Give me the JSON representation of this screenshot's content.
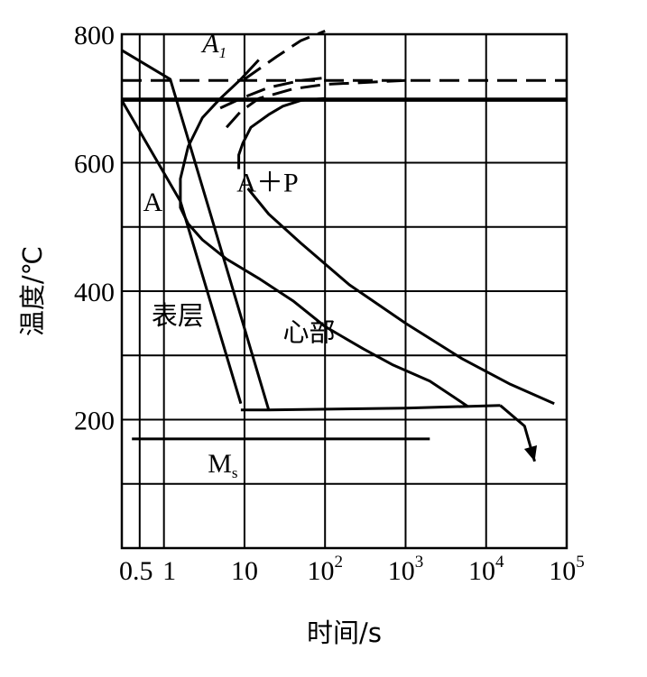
{
  "chart_data": {
    "type": "line",
    "title": "",
    "xlabel": "时间/s",
    "ylabel": "温度/℃",
    "x_scale": "log",
    "xlim": [
      0.3,
      100000
    ],
    "ylim": [
      0,
      800
    ],
    "grid": true,
    "y_ticks": [
      {
        "value": 200,
        "label": "200"
      },
      {
        "value": 400,
        "label": "400"
      },
      {
        "value": 600,
        "label": "600"
      },
      {
        "value": 800,
        "label": "800"
      }
    ],
    "y_gridlines": [
      100,
      200,
      300,
      400,
      500,
      600,
      700,
      800
    ],
    "x_ticks": [
      {
        "value": 0.5,
        "label": "0.5"
      },
      {
        "value": 1,
        "label": "1"
      },
      {
        "value": 10,
        "label": "10"
      },
      {
        "value": 100,
        "label": "10",
        "sup": "2"
      },
      {
        "value": 1000,
        "label": "10",
        "sup": "3"
      },
      {
        "value": 10000,
        "label": "10",
        "sup": "4"
      },
      {
        "value": 100000,
        "label": "10",
        "sup": "5"
      }
    ],
    "x_gridlines": [
      0.5,
      1,
      10,
      100,
      1000,
      10000
    ],
    "series": [
      {
        "name": "A1_line",
        "style": "dashed",
        "points": [
          [
            0.3,
            728
          ],
          [
            100000,
            728
          ]
        ]
      },
      {
        "name": "eutectoid_reference",
        "style": "solid",
        "points": [
          [
            0.3,
            697
          ],
          [
            100000,
            697
          ]
        ]
      },
      {
        "name": "pearlite_start",
        "style": "solid",
        "points": [
          [
            100,
            700
          ],
          [
            50,
            697
          ],
          [
            30,
            688
          ],
          [
            20,
            675
          ],
          [
            12,
            655
          ],
          [
            9.5,
            630
          ],
          [
            8.5,
            612
          ],
          [
            8.5,
            590
          ]
        ]
      },
      {
        "name": "pearlite_start_dashed",
        "style": "dashed",
        "points": [
          [
            6,
            655
          ],
          [
            9,
            680
          ],
          [
            15,
            700
          ],
          [
            40,
            715
          ],
          [
            100,
            722
          ],
          [
            1000,
            728
          ]
        ]
      },
      {
        "name": "ferrite_start_dashed",
        "style": "dashed",
        "points": [
          [
            5,
            685
          ],
          [
            9,
            700
          ],
          [
            20,
            717
          ],
          [
            50,
            728
          ],
          [
            100,
            732
          ]
        ]
      },
      {
        "name": "transformation_nose",
        "style": "solid",
        "points": [
          [
            15,
            760
          ],
          [
            9,
            730
          ],
          [
            5,
            700
          ],
          [
            3,
            670
          ],
          [
            2,
            625
          ],
          [
            1.6,
            575
          ],
          [
            1.6,
            530
          ],
          [
            2,
            505
          ],
          [
            3,
            480
          ],
          [
            6,
            450
          ],
          [
            15,
            420
          ],
          [
            40,
            385
          ],
          [
            100,
            345
          ],
          [
            300,
            310
          ],
          [
            700,
            285
          ],
          [
            2000,
            260
          ],
          [
            4000,
            235
          ],
          [
            6000,
            220
          ]
        ]
      },
      {
        "name": "pearlite_finish",
        "style": "solid",
        "points": [
          [
            11,
            560
          ],
          [
            20,
            520
          ],
          [
            50,
            475
          ],
          [
            200,
            410
          ],
          [
            1000,
            350
          ],
          [
            5000,
            295
          ],
          [
            20000,
            255
          ],
          [
            70000,
            225
          ]
        ]
      },
      {
        "name": "A1_dashed_upper",
        "style": "dashed",
        "points": [
          [
            10,
            730
          ],
          [
            25,
            765
          ],
          [
            50,
            790
          ],
          [
            100,
            805
          ]
        ]
      },
      {
        "name": "surface_cooling",
        "style": "solid",
        "points": [
          [
            0.3,
            697
          ],
          [
            1.6,
            540
          ],
          [
            9,
            225
          ]
        ]
      },
      {
        "name": "core_cooling",
        "style": "solid",
        "points": [
          [
            0.3,
            775
          ],
          [
            1.2,
            730
          ],
          [
            4,
            510
          ],
          [
            20,
            215
          ]
        ]
      },
      {
        "name": "tempering_hold",
        "style": "solid",
        "points": [
          [
            9,
            215
          ],
          [
            20,
            215
          ],
          [
            1000,
            218
          ],
          [
            15000,
            222
          ]
        ]
      },
      {
        "name": "final_cooling",
        "style": "solid",
        "points": [
          [
            15000,
            222
          ],
          [
            30000,
            190
          ],
          [
            40000,
            135
          ]
        ],
        "arrow": true
      },
      {
        "name": "Ms_line",
        "style": "solid",
        "points": [
          [
            0.4,
            170
          ],
          [
            2000,
            170
          ]
        ]
      }
    ],
    "annotations": [
      {
        "name": "a1-label",
        "text": "A",
        "sub": "1",
        "x": 3,
        "y": 772,
        "italic": true
      },
      {
        "name": "austenite-label",
        "text": "A",
        "x": 0.55,
        "y": 525
      },
      {
        "name": "austenite-pearlite-label",
        "text": "A＋P",
        "x": 8,
        "y": 555
      },
      {
        "name": "surface-label",
        "text": "表层",
        "x": 0.7,
        "y": 348
      },
      {
        "name": "core-label",
        "text": "心部",
        "x": 30,
        "y": 322
      },
      {
        "name": "ms-label",
        "text": "M",
        "sub": "s",
        "x": 3.5,
        "y": 118
      }
    ]
  }
}
